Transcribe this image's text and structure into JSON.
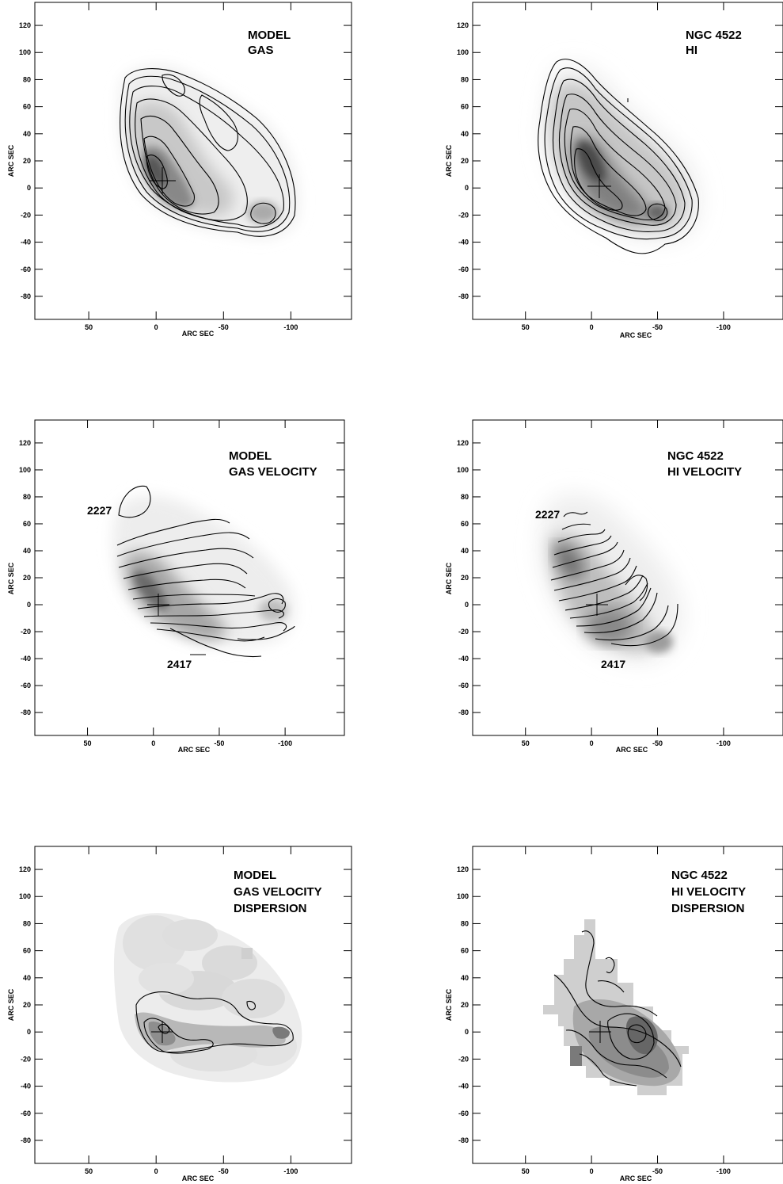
{
  "chart_data": [
    {
      "type": "heatmap",
      "panel": "model-gas",
      "title_lines": [
        "MODEL",
        "GAS"
      ],
      "xlabel": "ARC SEC",
      "ylabel": "ARC SEC",
      "xlim": [
        90,
        -145
      ],
      "ylim": [
        -97,
        137
      ],
      "xticks": [
        50,
        0,
        -50,
        -100
      ],
      "yticks": [
        120,
        100,
        80,
        60,
        40,
        20,
        0,
        -20,
        -40,
        -60,
        -80
      ],
      "annotations": []
    },
    {
      "type": "heatmap",
      "panel": "ngc4522-hi",
      "title_lines": [
        "NGC 4522",
        "HI"
      ],
      "xlabel": "ARC SEC",
      "ylabel": "ARC SEC",
      "xlim": [
        90,
        -145
      ],
      "ylim": [
        -97,
        137
      ],
      "xticks": [
        50,
        0,
        -50,
        -100
      ],
      "yticks": [
        120,
        100,
        80,
        60,
        40,
        20,
        0,
        -20,
        -40,
        -60,
        -80
      ],
      "annotations": []
    },
    {
      "type": "heatmap",
      "panel": "model-gas-velocity",
      "title_lines": [
        "MODEL",
        "GAS VELOCITY"
      ],
      "xlabel": "ARC SEC",
      "ylabel": "ARC SEC",
      "xlim": [
        90,
        -145
      ],
      "ylim": [
        -97,
        137
      ],
      "xticks": [
        50,
        0,
        -50,
        -100
      ],
      "yticks": [
        120,
        100,
        80,
        60,
        40,
        20,
        0,
        -20,
        -40,
        -60,
        -80
      ],
      "annotations": [
        {
          "text": "2227",
          "x": 45,
          "y": 70
        },
        {
          "text": "2417",
          "x": -7,
          "y": -44
        }
      ]
    },
    {
      "type": "heatmap",
      "panel": "ngc4522-hi-velocity",
      "title_lines": [
        "NGC 4522",
        "HI VELOCITY"
      ],
      "xlabel": "ARC SEC",
      "ylabel": "ARC SEC",
      "xlim": [
        90,
        -145
      ],
      "ylim": [
        -97,
        137
      ],
      "xticks": [
        50,
        0,
        -50,
        -100
      ],
      "yticks": [
        120,
        100,
        80,
        60,
        40,
        20,
        0,
        -20,
        -40,
        -60,
        -80
      ],
      "annotations": [
        {
          "text": "2227",
          "x": 45,
          "y": 66
        },
        {
          "text": "2417",
          "x": -4,
          "y": -44
        }
      ]
    },
    {
      "type": "heatmap",
      "panel": "model-gas-velocity-dispersion",
      "title_lines": [
        "MODEL",
        "GAS VELOCITY",
        "DISPERSION"
      ],
      "xlabel": "ARC SEC",
      "ylabel": "ARC SEC",
      "xlim": [
        90,
        -145
      ],
      "ylim": [
        -97,
        137
      ],
      "xticks": [
        50,
        0,
        -50,
        -100
      ],
      "yticks": [
        120,
        100,
        80,
        60,
        40,
        20,
        0,
        -20,
        -40,
        -60,
        -80
      ],
      "annotations": []
    },
    {
      "type": "heatmap",
      "panel": "ngc4522-hi-velocity-dispersion",
      "title_lines": [
        "NGC 4522",
        "HI VELOCITY",
        "DISPERSION"
      ],
      "xlabel": "ARC SEC",
      "ylabel": "ARC SEC",
      "xlim": [
        90,
        -145
      ],
      "ylim": [
        -97,
        137
      ],
      "xticks": [
        50,
        0,
        -50,
        -100
      ],
      "yticks": [
        120,
        100,
        80,
        60,
        40,
        20,
        0,
        -20,
        -40,
        -60,
        -80
      ],
      "annotations": []
    }
  ],
  "colors": {
    "greyscale_light": "#ececec",
    "greyscale_mid": "#b5b5b5",
    "greyscale_dark": "#555555",
    "contour": "#000000"
  }
}
